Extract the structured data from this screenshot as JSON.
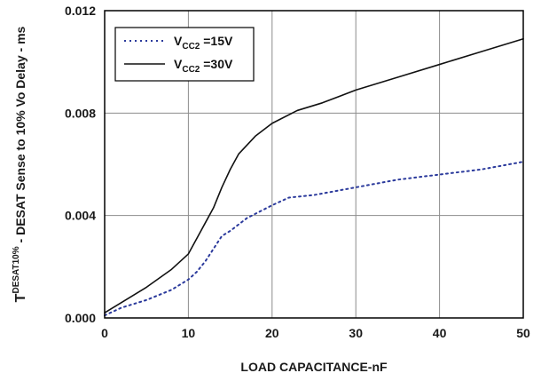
{
  "chart_data": {
    "type": "line",
    "xlabel": "LOAD CAPACITANCE-nF",
    "ylabel": {
      "main": "T",
      "superscript": "DESAT10%",
      "rest": " - DESAT Sense to 10% Vo Delay - ms"
    },
    "xlim": [
      0,
      50
    ],
    "ylim": [
      0,
      0.012
    ],
    "xticks": [
      "0",
      "10",
      "20",
      "30",
      "40",
      "50"
    ],
    "yticks": [
      "0.000",
      "0.004",
      "0.008",
      "0.012"
    ],
    "grid": true,
    "legend_position": "top-left",
    "series": [
      {
        "name": "VCC2 =15V",
        "label_main": "V",
        "label_sub": "CC2",
        "label_rest": " =15V",
        "style": "dotted",
        "color": "#2b3a9c",
        "x": [
          0,
          2,
          5,
          8,
          10,
          11,
          12,
          13,
          14,
          15,
          17,
          20,
          22,
          25,
          30,
          35,
          40,
          45,
          50
        ],
        "y": [
          0.0001,
          0.0004,
          0.0007,
          0.0011,
          0.0015,
          0.0018,
          0.0022,
          0.0027,
          0.0032,
          0.0034,
          0.0039,
          0.0044,
          0.0047,
          0.0048,
          0.0051,
          0.0054,
          0.0056,
          0.0058,
          0.0061
        ]
      },
      {
        "name": "VCC2 =30V",
        "label_main": "V",
        "label_sub": "CC2",
        "label_rest": " =30V",
        "style": "solid",
        "color": "#111111",
        "x": [
          0,
          2,
          5,
          8,
          10,
          11,
          12,
          13,
          14,
          15,
          16,
          18,
          20,
          23,
          26,
          30,
          35,
          40,
          45,
          50
        ],
        "y": [
          0.0002,
          0.0006,
          0.0012,
          0.0019,
          0.0025,
          0.0031,
          0.0037,
          0.0043,
          0.0051,
          0.0058,
          0.0064,
          0.0071,
          0.0076,
          0.0081,
          0.0084,
          0.0089,
          0.0094,
          0.0099,
          0.0104,
          0.0109
        ]
      }
    ]
  }
}
